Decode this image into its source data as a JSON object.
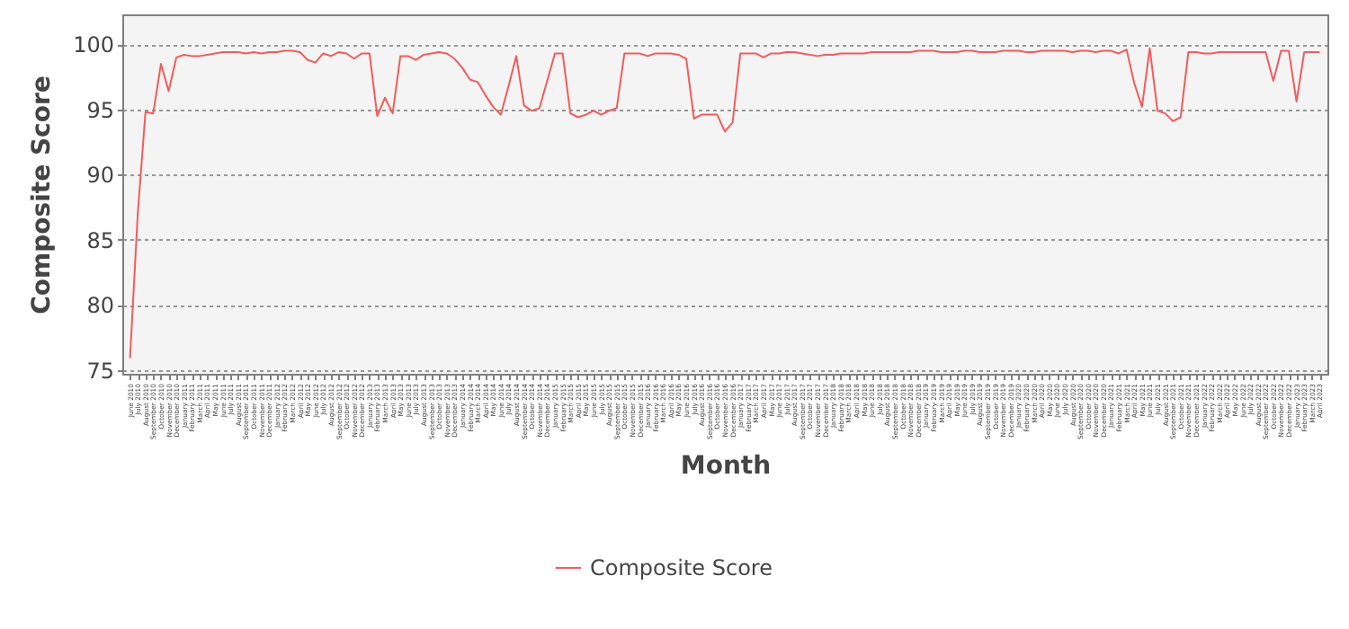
{
  "chart_data": {
    "type": "line",
    "xlabel": "Month",
    "ylabel": "Composite Score",
    "categories": [
      "June 2010",
      "July 2010",
      "August 2010",
      "September 2010",
      "October 2010",
      "November 2010",
      "December 2010",
      "January 2011",
      "February 2011",
      "March 2011",
      "April 2011",
      "May 2011",
      "June 2011",
      "July 2011",
      "August 2011",
      "September 2011",
      "October 2011",
      "November 2011",
      "December 2011",
      "January 2012",
      "February 2012",
      "March 2012",
      "April 2012",
      "May 2012",
      "June 2012",
      "July 2012",
      "August 2012",
      "September 2012",
      "October 2012",
      "November 2012",
      "December 2012",
      "January 2013",
      "February 2013",
      "March 2013",
      "April 2013",
      "May 2013",
      "June 2013",
      "July 2013",
      "August 2013",
      "September 2013",
      "October 2013",
      "November 2013",
      "December 2013",
      "January 2014",
      "February 2014",
      "March 2014",
      "April 2014",
      "May 2014",
      "June 2014",
      "July 2014",
      "August 2014",
      "September 2014",
      "October 2014",
      "November 2014",
      "December 2014",
      "January 2015",
      "February 2015",
      "March 2015",
      "April 2015",
      "May 2015",
      "June 2015",
      "July 2015",
      "August 2015",
      "September 2015",
      "October 2015",
      "November 2015",
      "December 2015",
      "January 2016",
      "February 2016",
      "March 2016",
      "April 2016",
      "May 2016",
      "June 2016",
      "July 2016",
      "August 2016",
      "September 2016",
      "October 2016",
      "November 2016",
      "December 2016",
      "January 2017",
      "February 2017",
      "March 2017",
      "April 2017",
      "May 2017",
      "June 2017",
      "July 2017",
      "August 2017",
      "September 2017",
      "October 2017",
      "November 2017",
      "December 2017",
      "January 2018",
      "February 2018",
      "March 2018",
      "April 2018",
      "May 2018",
      "June 2018",
      "July 2018",
      "August 2018",
      "September 2018",
      "October 2018",
      "November 2018",
      "December 2018",
      "January 2019",
      "February 2019",
      "March 2019",
      "April 2019",
      "May 2019",
      "June 2019",
      "July 2019",
      "August 2019",
      "September 2019",
      "October 2019",
      "November 2019",
      "December 2019",
      "January 2020",
      "February 2020",
      "March 2020",
      "April 2020",
      "May 2020",
      "June 2020",
      "July 2020",
      "August 2020",
      "September 2020",
      "October 2020",
      "November 2020",
      "December 2020",
      "January 2021",
      "February 2021",
      "March 2021",
      "April 2021",
      "May 2021",
      "June 2021",
      "July 2021",
      "August 2021",
      "September 2021",
      "October 2021",
      "November 2021",
      "December 2021",
      "January 2022",
      "February 2022",
      "March 2022",
      "April 2022",
      "May 2022",
      "June 2022",
      "July 2022",
      "August 2022",
      "September 2022",
      "October 2022",
      "November 2022",
      "December 2022",
      "January 2023",
      "February 2023",
      "March 2023",
      "April 2023"
    ],
    "series": [
      {
        "name": "Composite Score",
        "color": "#f45b5b",
        "values": [
          75.9,
          87,
          94.8,
          94.7,
          98.5,
          96.4,
          99.0,
          99.2,
          99.1,
          99.1,
          99.2,
          99.3,
          99.4,
          99.4,
          99.4,
          99.3,
          99.4,
          99.3,
          99.4,
          99.4,
          99.5,
          99.5,
          99.4,
          98.8,
          98.6,
          99.3,
          99.1,
          99.4,
          99.3,
          98.9,
          99.3,
          99.3,
          94.5,
          95.9,
          94.7,
          99.1,
          99.1,
          98.8,
          99.2,
          99.3,
          99.4,
          99.3,
          98.9,
          98.2,
          97.3,
          97.1,
          96.1,
          95.2,
          94.6,
          96.8,
          99.1,
          95.3,
          94.9,
          95.1,
          97.2,
          99.3,
          99.3,
          94.7,
          94.4,
          94.6,
          94.9,
          94.6,
          94.9,
          95.1,
          99.3,
          99.3,
          99.3,
          99.1,
          99.3,
          99.3,
          99.3,
          99.2,
          98.9,
          94.3,
          94.6,
          94.6,
          94.6,
          93.3,
          94.0,
          99.3,
          99.3,
          99.3,
          99.0,
          99.3,
          99.3,
          99.4,
          99.4,
          99.3,
          99.2,
          99.1,
          99.2,
          99.2,
          99.3,
          99.3,
          99.3,
          99.3,
          99.4,
          99.4,
          99.4,
          99.4,
          99.4,
          99.4,
          99.5,
          99.5,
          99.5,
          99.4,
          99.4,
          99.4,
          99.5,
          99.5,
          99.4,
          99.4,
          99.4,
          99.5,
          99.5,
          99.5,
          99.4,
          99.4,
          99.5,
          99.5,
          99.5,
          99.5,
          99.4,
          99.5,
          99.5,
          99.4,
          99.5,
          99.5,
          99.3,
          99.6,
          97.0,
          95.2,
          99.7,
          94.9,
          94.7,
          94.1,
          94.4,
          99.4,
          99.4,
          99.3,
          99.3,
          99.4,
          99.4,
          99.4,
          99.4,
          99.4,
          99.4,
          99.4,
          97.2,
          99.5,
          99.5,
          95.6,
          99.4,
          99.4,
          99.4
        ]
      }
    ],
    "ylim": [
      74.7,
      102.3
    ],
    "yticks": [
      75,
      80,
      85,
      90,
      95,
      100
    ],
    "grid": "y",
    "legend": "bottom",
    "marker": "none",
    "line_style": "solid"
  }
}
